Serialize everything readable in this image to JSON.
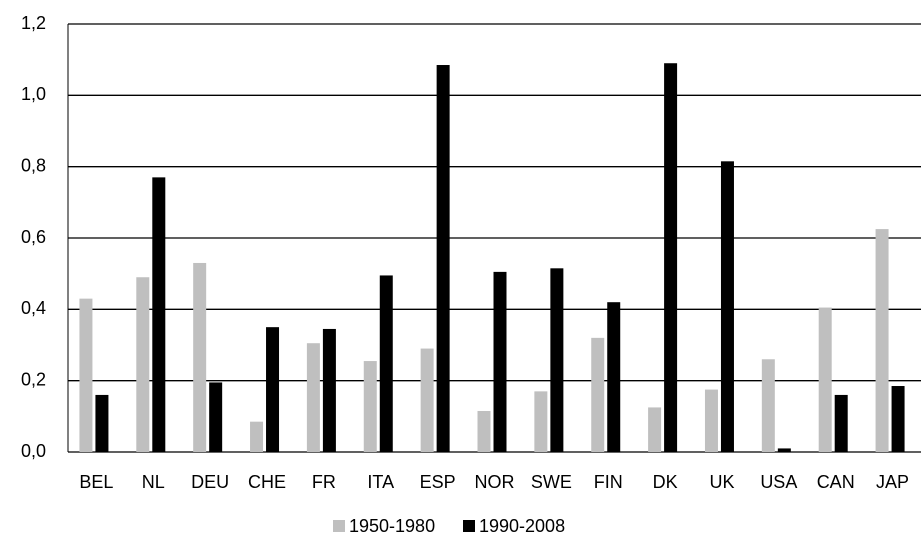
{
  "chart_data": {
    "type": "bar",
    "categories": [
      "BEL",
      "NL",
      "DEU",
      "CHE",
      "FR",
      "ITA",
      "ESP",
      "NOR",
      "SWE",
      "FIN",
      "DK",
      "UK",
      "USA",
      "CAN",
      "JAP"
    ],
    "series": [
      {
        "name": "1950-1980",
        "color": "#bfbfbf",
        "values": [
          0.43,
          0.49,
          0.53,
          0.085,
          0.305,
          0.255,
          0.29,
          0.115,
          0.17,
          0.32,
          0.125,
          0.175,
          0.26,
          0.405,
          0.625
        ]
      },
      {
        "name": "1990-2008",
        "color": "#000000",
        "values": [
          0.16,
          0.77,
          0.195,
          0.35,
          0.345,
          0.495,
          1.085,
          0.505,
          0.515,
          0.42,
          1.09,
          0.815,
          0.01,
          0.16,
          0.185
        ]
      }
    ],
    "ylim": [
      0,
      1.2
    ],
    "yticks": [
      {
        "value": 0,
        "label": "0,0"
      },
      {
        "value": 0.2,
        "label": "0,2"
      },
      {
        "value": 0.4,
        "label": "0,4"
      },
      {
        "value": 0.6,
        "label": "0,6"
      },
      {
        "value": 0.8,
        "label": "0,8"
      },
      {
        "value": 1.0,
        "label": "1,0"
      },
      {
        "value": 1.2,
        "label": "1,2"
      }
    ],
    "grid": true,
    "legend": "bottom"
  }
}
